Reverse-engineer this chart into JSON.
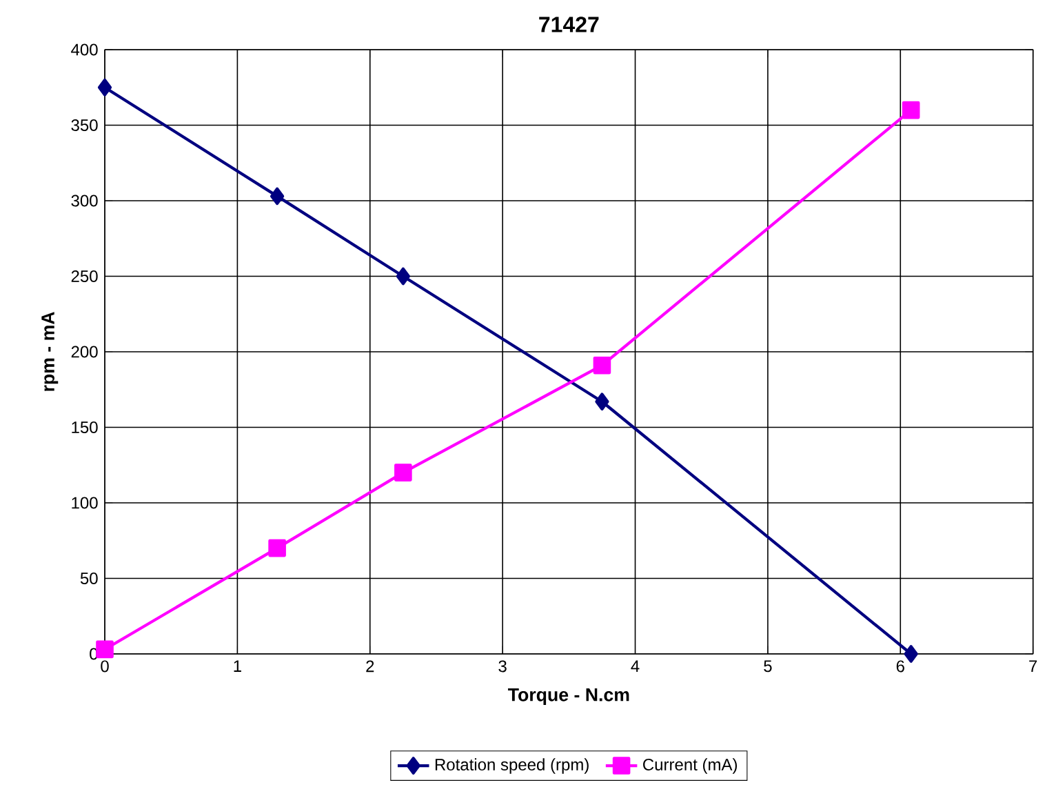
{
  "chart_data": {
    "type": "line",
    "title": "71427",
    "xlabel": "Torque - N.cm",
    "ylabel": "rpm - mA",
    "series": [
      {
        "name": "Rotation speed (rpm)",
        "color": "#000080",
        "marker": "diamond",
        "x": [
          0,
          1.3,
          2.25,
          3.75,
          6.08
        ],
        "values": [
          375,
          303,
          250,
          167,
          0
        ]
      },
      {
        "name": "Current (mA)",
        "color": "#ff00ff",
        "marker": "square",
        "x": [
          0,
          1.3,
          2.25,
          3.75,
          6.08
        ],
        "values": [
          3,
          70,
          120,
          191,
          360
        ]
      }
    ],
    "xlim": [
      0,
      7
    ],
    "ylim": [
      0,
      400
    ],
    "xticks": [
      0,
      1,
      2,
      3,
      4,
      5,
      6,
      7
    ],
    "yticks": [
      0,
      50,
      100,
      150,
      200,
      250,
      300,
      350,
      400
    ],
    "grid": true,
    "legend": "bottom",
    "line_style": "solid"
  }
}
